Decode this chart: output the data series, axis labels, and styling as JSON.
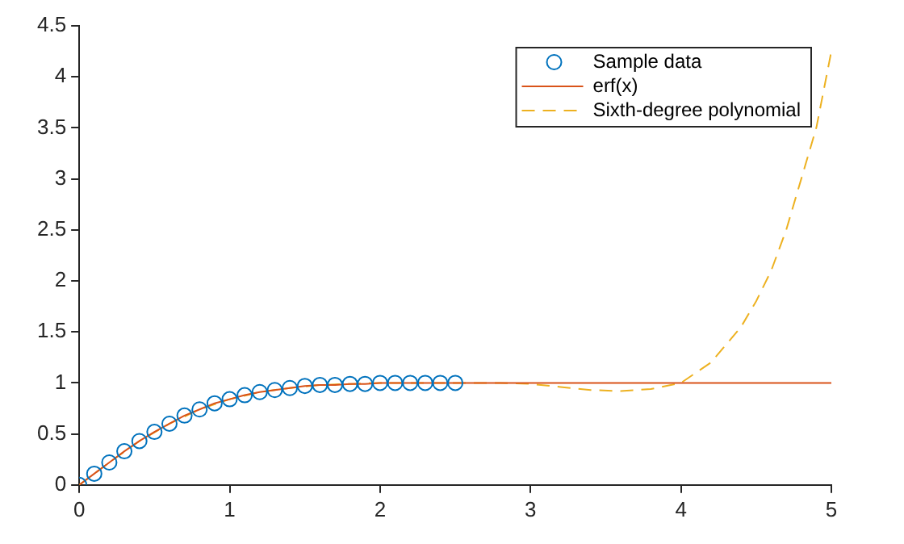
{
  "chart_data": {
    "type": "line",
    "xlim": [
      0,
      5
    ],
    "xticks": [
      0,
      1,
      2,
      3,
      4,
      5
    ],
    "ylim": [
      0,
      4.5
    ],
    "yticks": [
      0,
      0.5,
      1,
      1.5,
      2,
      2.5,
      3,
      3.5,
      4,
      4.5
    ],
    "grid": false,
    "legend": "top right",
    "series": [
      {
        "name": "Sample data",
        "type": "scatter",
        "marker": "circle",
        "color": "#0072bd",
        "x": [
          0,
          0.1,
          0.2,
          0.3,
          0.4,
          0.5,
          0.6,
          0.7,
          0.8,
          0.9,
          1,
          1.1,
          1.2,
          1.3,
          1.4,
          1.5,
          1.6,
          1.7,
          1.8,
          1.9,
          2,
          2.1,
          2.2,
          2.3,
          2.4,
          2.5
        ],
        "values": [
          0,
          0.11,
          0.22,
          0.33,
          0.43,
          0.52,
          0.6,
          0.68,
          0.74,
          0.8,
          0.84,
          0.88,
          0.91,
          0.93,
          0.95,
          0.97,
          0.98,
          0.98,
          0.99,
          0.99,
          1,
          1,
          1,
          1,
          1,
          1
        ]
      },
      {
        "name": "erf(x)",
        "marker": "none",
        "line_style": "solid",
        "color": "#d95319",
        "x": [
          0,
          0.1,
          0.2,
          0.3,
          0.4,
          0.5,
          0.6,
          0.7,
          0.8,
          0.9,
          1,
          1.1,
          1.2,
          1.3,
          1.4,
          1.5,
          1.6,
          1.7,
          1.8,
          1.9,
          2,
          2.2,
          2.5,
          3,
          4,
          5
        ],
        "values": [
          0,
          0.11,
          0.22,
          0.33,
          0.43,
          0.52,
          0.6,
          0.68,
          0.74,
          0.8,
          0.84,
          0.88,
          0.91,
          0.93,
          0.95,
          0.97,
          0.98,
          0.98,
          0.99,
          0.99,
          1,
          1,
          1,
          1,
          1,
          1
        ]
      },
      {
        "name": "Sixth-degree polynomial",
        "marker": "none",
        "line_style": "dashed",
        "color": "#edb120",
        "x": [
          0,
          0.2,
          0.4,
          0.6,
          0.8,
          1,
          1.2,
          1.4,
          1.6,
          1.8,
          2,
          2.2,
          2.5,
          2.8,
          3,
          3.2,
          3.4,
          3.6,
          3.8,
          4,
          4.2,
          4.4,
          4.5,
          4.6,
          4.7,
          4.8,
          4.9,
          5
        ],
        "values": [
          0,
          0.22,
          0.43,
          0.6,
          0.74,
          0.84,
          0.91,
          0.95,
          0.98,
          0.99,
          1,
          1,
          1,
          1,
          0.99,
          0.96,
          0.93,
          0.92,
          0.94,
          1,
          1.2,
          1.55,
          1.8,
          2.1,
          2.5,
          3,
          3.5,
          4.25
        ]
      }
    ]
  }
}
